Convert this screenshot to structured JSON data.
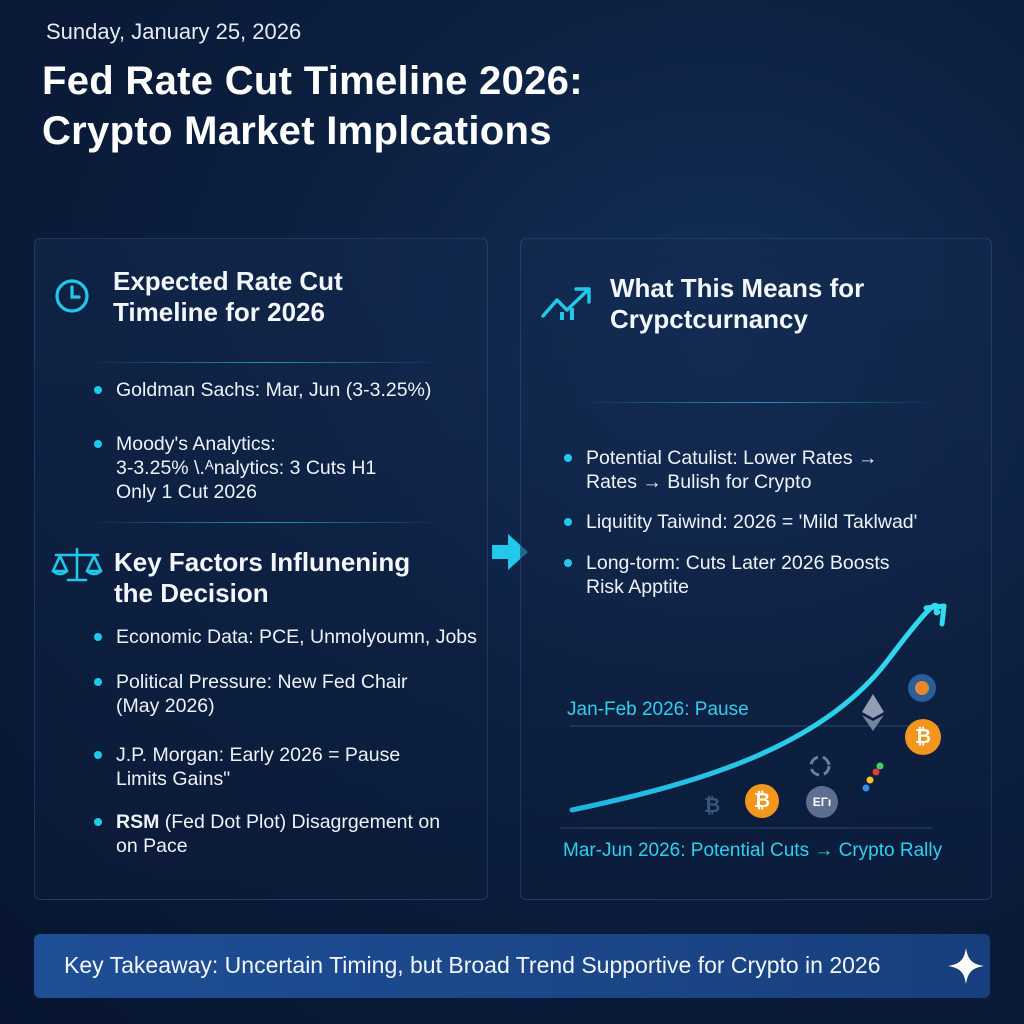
{
  "header": {
    "date": "Sunday, January 25, 2026",
    "title_line1": "Fed Rate Cut Timeline 2026:",
    "title_line2": "Crypto Market Implcations"
  },
  "left_panel": {
    "timeline_heading_line1": "Expected Rate Cut",
    "timeline_heading_line2": "Timeline for 2026",
    "timeline_items": [
      {
        "lines": [
          "Goldman Sachs: Mar, Jun (3-3.25%)"
        ]
      },
      {
        "lines": [
          "Moody's Analytics:",
          "3-3.25%  \\.ᴬnalytics:  3 Cuts H1",
          "Only 1 Cut 2026"
        ]
      }
    ],
    "factors_heading_line1": "Key Factors Influnening",
    "factors_heading_line2": "the Decision",
    "factor_items": [
      {
        "lines": [
          "Economic Data: PCE, Unmolyoumn, Jobs"
        ]
      },
      {
        "lines": [
          "Political Pressure: New Fed Chair",
          "(May 2026)"
        ]
      },
      {
        "lines": [
          "J.P. Morgan: Early 2026 = Pause",
          "Limits Gains\""
        ]
      },
      {
        "lines": [
          "RSM (Fed Dot Plot)  Disagrgement on",
          "on Pace"
        ],
        "bold_prefix": "RSM"
      }
    ]
  },
  "right_panel": {
    "heading_line1": "What This Means for",
    "heading_line2": "Crypctcurnancy",
    "items": [
      {
        "lines": [
          "Potential Catulist: Lower Rates →",
          "Rates → Bulish for Crypto"
        ]
      },
      {
        "lines": [
          "Liquitity Taiwind: 2026 = 'Mild Taklwad'"
        ]
      },
      {
        "lines": [
          "Long-torm: Cuts Later 2026 Boosts",
          "Risk Apptite"
        ]
      }
    ],
    "chart": {
      "label_pause": "Jan-Feb 2026: Pause",
      "label_cuts": "Mar-Jun 2026: Potential Cuts → Crypto Rally",
      "coin_eth_label": "EΓı"
    }
  },
  "footer": {
    "takeaway": "Key Takeaway: Uncertain Timing, but Broad Trend Supportive for Crypto in 2026"
  },
  "icons": {
    "clock": "clock-icon",
    "scale": "balance-scale-icon",
    "trend": "trend-up-icon",
    "arrow": "arrow-right-icon",
    "sparkle": "sparkle-icon"
  },
  "colors": {
    "accent": "#22c8ea",
    "bitcoin": "#f2961e",
    "takeaway_bg": "#1e4e95"
  }
}
